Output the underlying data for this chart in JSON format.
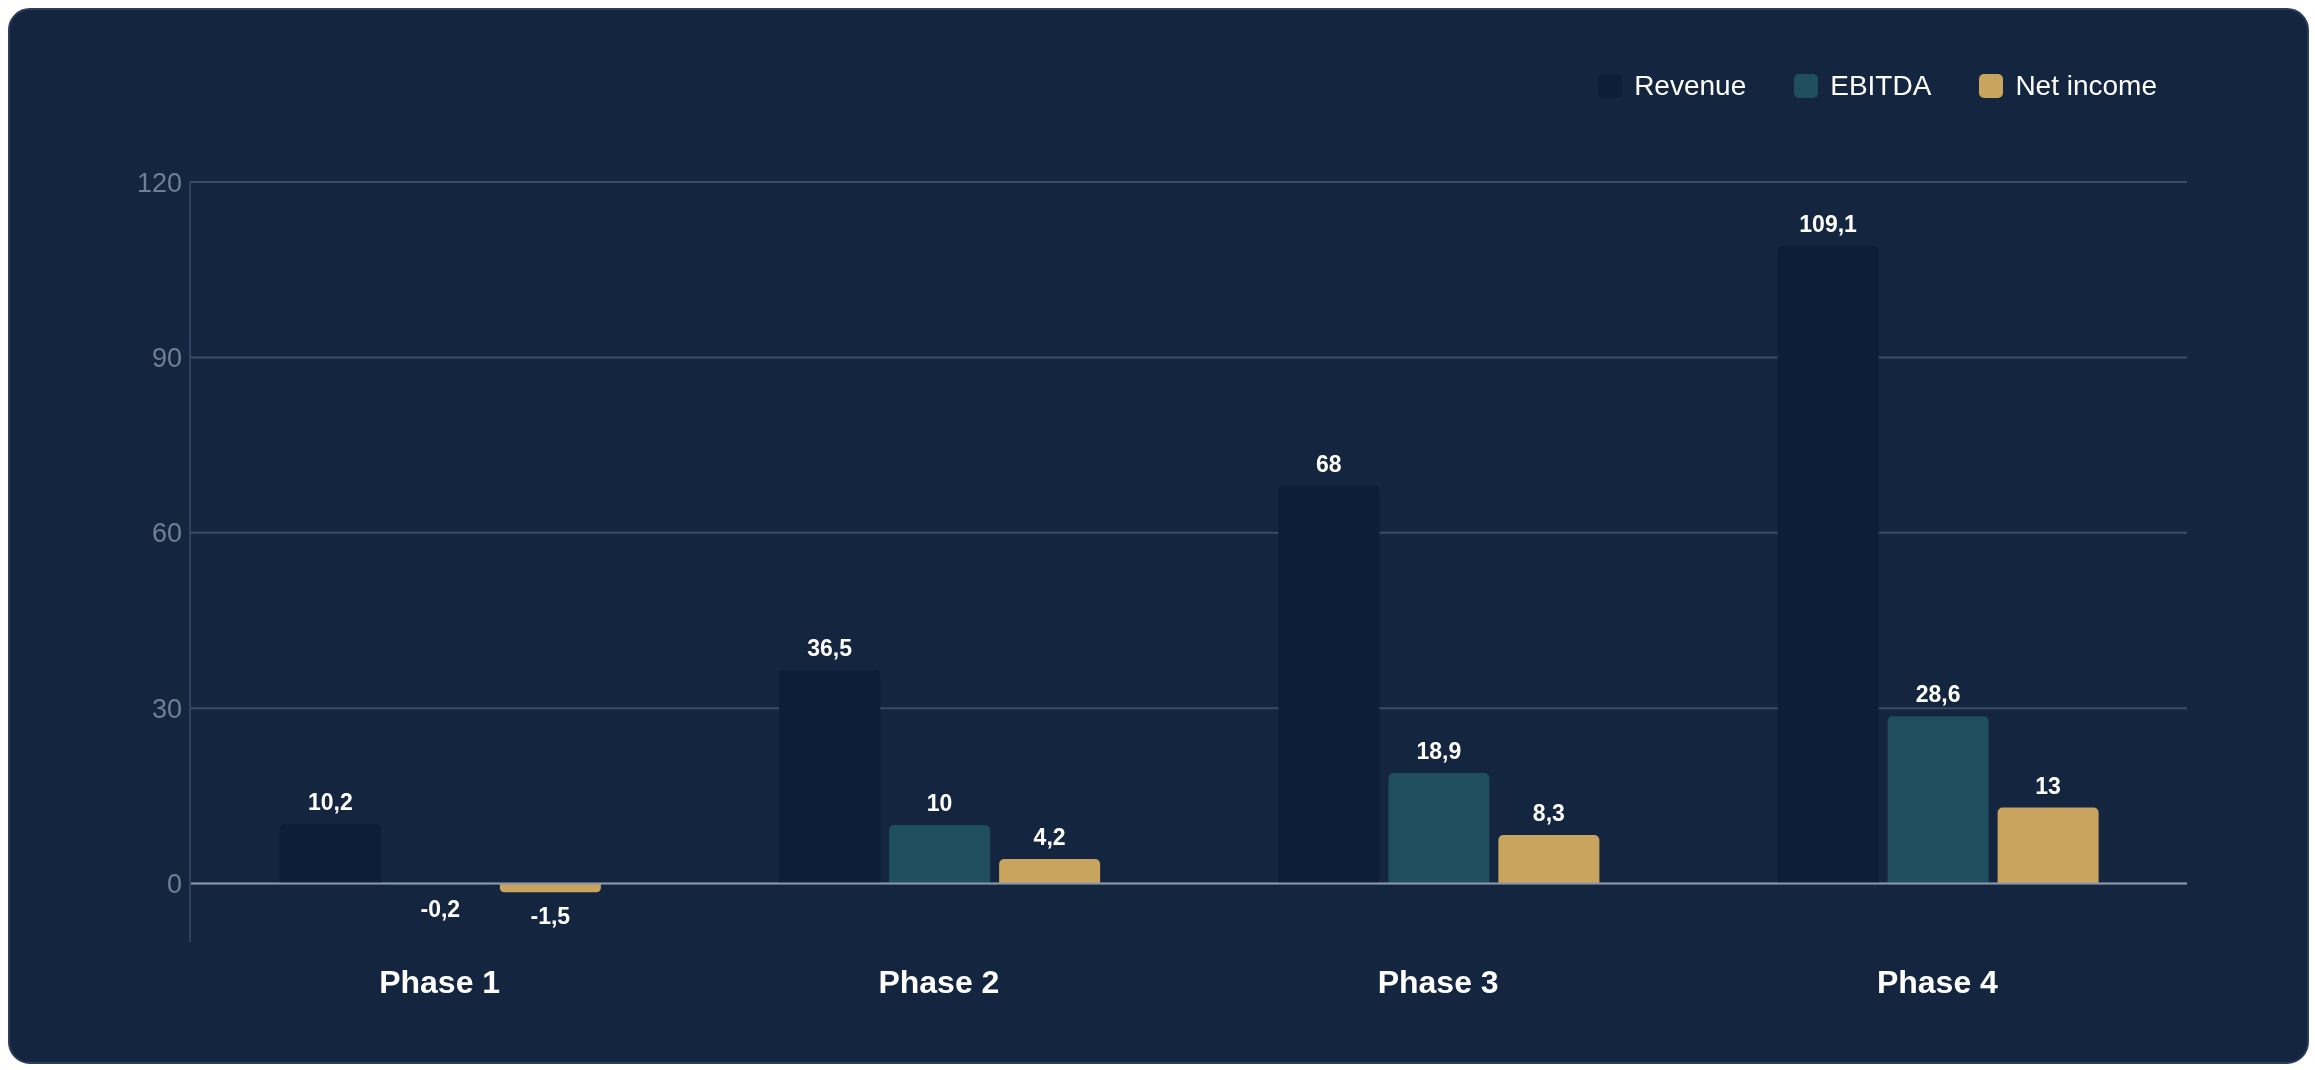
{
  "chart_data": {
    "type": "bar",
    "categories": [
      "Phase 1",
      "Phase 2",
      "Phase 3",
      "Phase 4"
    ],
    "series": [
      {
        "name": "Revenue",
        "color": "#0c1e38",
        "values": [
          10.2,
          36.5,
          68,
          109.1
        ],
        "value_labels": [
          "10,2",
          "36,5",
          "68",
          "109,1"
        ]
      },
      {
        "name": "EBITDA",
        "color": "#1f4e5f",
        "values": [
          -0.2,
          10,
          18.9,
          28.6
        ],
        "value_labels": [
          "-0,2",
          "10",
          "18,9",
          "28,6"
        ]
      },
      {
        "name": "Net income",
        "color": "#c8a45e",
        "values": [
          -1.5,
          4.2,
          8.3,
          13
        ],
        "value_labels": [
          "-1,5",
          "4,2",
          "8,3",
          "13"
        ]
      }
    ],
    "ylim": [
      -10,
      120
    ],
    "yticks": [
      0,
      30,
      60,
      90,
      120
    ],
    "grid": "y",
    "legend": "top right"
  }
}
